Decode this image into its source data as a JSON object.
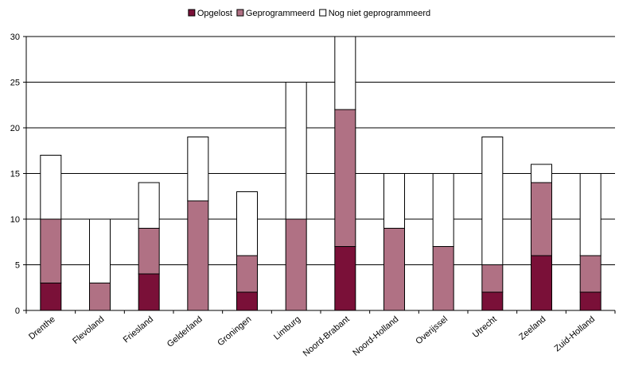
{
  "chart_data": {
    "type": "bar",
    "stacked": true,
    "categories": [
      "Drenthe",
      "Flevoland",
      "Friesland",
      "Gelderland",
      "Groningen",
      "Limburg",
      "Noord-Brabant",
      "Noord-Holland",
      "Overijssel",
      "Utrecht",
      "Zeeland",
      "Zuid-Holland"
    ],
    "series": [
      {
        "name": "Opgelost",
        "color": "#7a1038",
        "values": [
          3,
          0,
          4,
          0,
          2,
          0,
          7,
          0,
          0,
          2,
          6,
          2
        ]
      },
      {
        "name": "Geprogrammeerd",
        "color": "#b07184",
        "values": [
          7,
          3,
          5,
          12,
          4,
          10,
          15,
          9,
          7,
          3,
          8,
          4
        ]
      },
      {
        "name": "Nog niet geprogrammeerd",
        "color": "#ffffff",
        "values": [
          7,
          7,
          5,
          7,
          7,
          15,
          8,
          6,
          8,
          14,
          2,
          9
        ]
      }
    ],
    "ylim": [
      0,
      30
    ],
    "yticks": [
      0,
      5,
      10,
      15,
      20,
      25,
      30
    ],
    "grid": true,
    "legend_position": "top-center",
    "title": "",
    "xlabel": "",
    "ylabel": ""
  }
}
